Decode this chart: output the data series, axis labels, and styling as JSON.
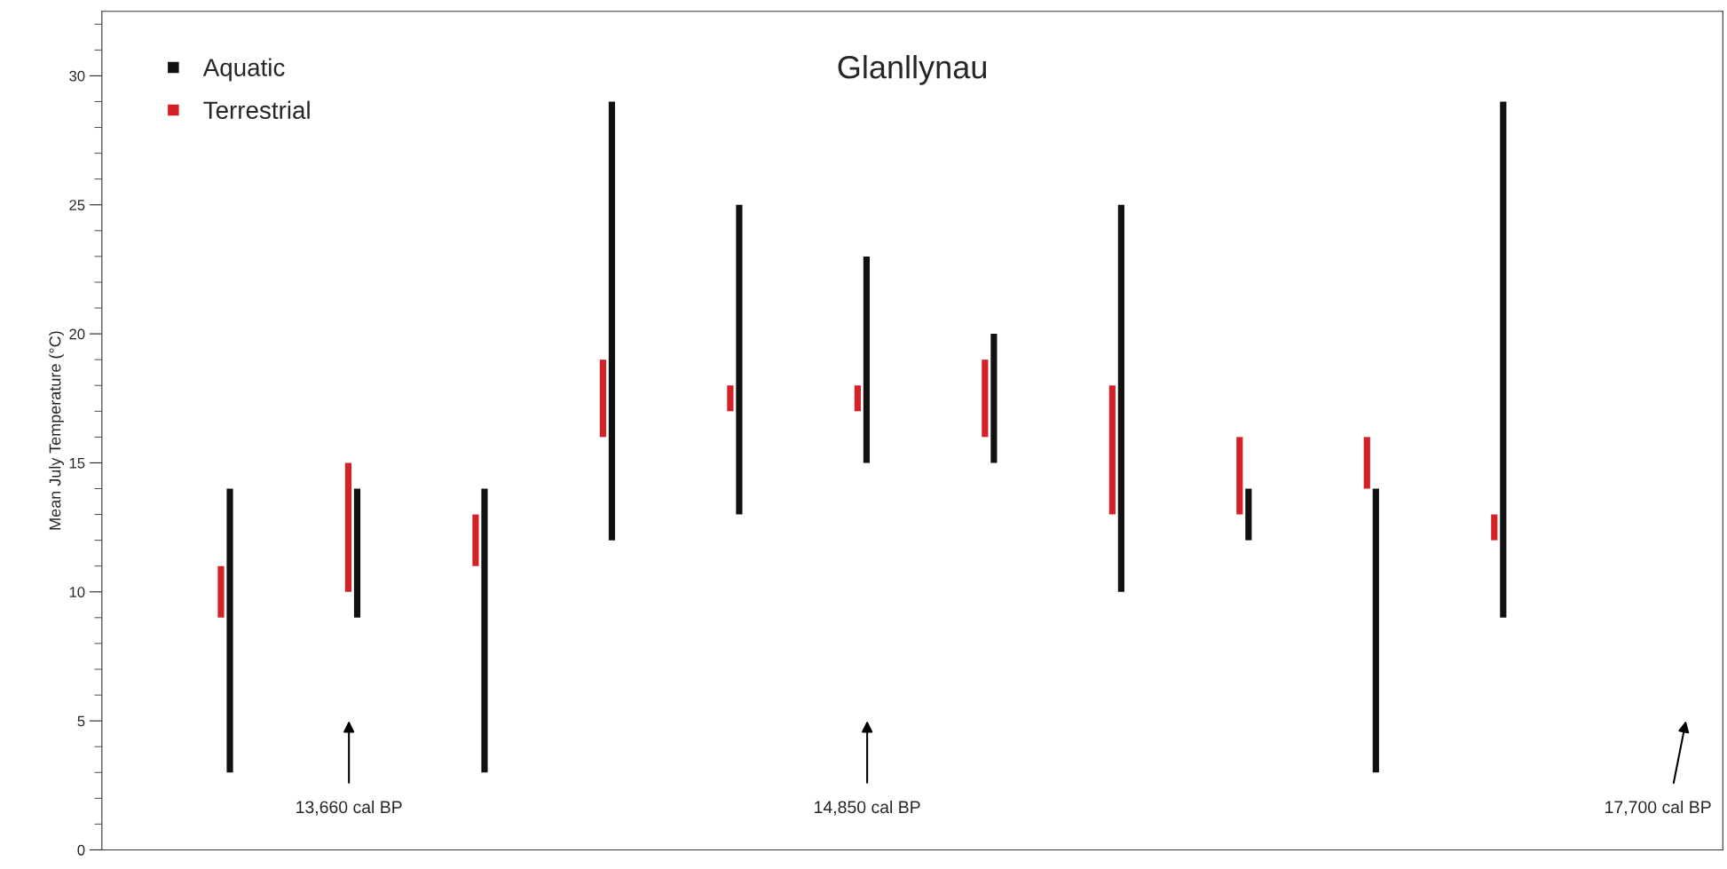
{
  "chart_data": {
    "type": "bar",
    "title": "Glanllynau",
    "ylabel": "Mean July Temperature (°C)",
    "categories": [
      null,
      null,
      null,
      null,
      null,
      null,
      null,
      null,
      null,
      null,
      null
    ],
    "series": [
      {
        "name": "Terrestrial",
        "color": "#d42027",
        "base": [
          9,
          10,
          11,
          16,
          17,
          17,
          16,
          13,
          13,
          14,
          12
        ],
        "values": [
          2,
          5,
          2,
          3,
          1,
          1,
          3,
          5,
          3,
          2,
          1
        ]
      },
      {
        "name": "Aquatic",
        "color": "#111111",
        "base": [
          3,
          9,
          3,
          12,
          13,
          15,
          15,
          10,
          12,
          3,
          9
        ],
        "values": [
          11,
          5,
          11,
          17,
          12,
          8,
          5,
          15,
          2,
          11,
          20
        ]
      }
    ],
    "ylim": [
      0,
      32.5
    ],
    "yticks": [
      0,
      5,
      10,
      15,
      20,
      25,
      30
    ],
    "annotations": [
      "13,660 cal BP",
      "14,850 cal BP",
      "17,700 cal BP"
    ],
    "legend": "top left",
    "grid": false,
    "tick_labels": "y"
  }
}
